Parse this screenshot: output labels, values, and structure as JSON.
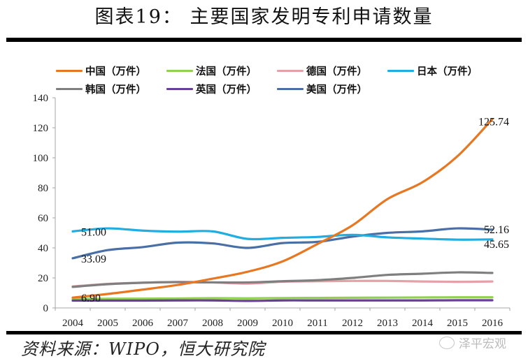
{
  "header": {
    "title": "图表19：  主要国家发明专利申请数量"
  },
  "footer": {
    "source": "资料来源：WIPO，恒大研究院",
    "watermark": "泽平宏观"
  },
  "chart_data": {
    "type": "line",
    "title": "图表19：主要国家发明专利申请数量",
    "xlabel": "",
    "ylabel": "",
    "x": [
      "2004",
      "2005",
      "2006",
      "2007",
      "2008",
      "2009",
      "2010",
      "2011",
      "2012",
      "2013",
      "2014",
      "2015",
      "2016"
    ],
    "ylim": [
      0,
      140
    ],
    "yticks": [
      0,
      20,
      40,
      60,
      80,
      100,
      120,
      140
    ],
    "grid": false,
    "legend_position": "top",
    "series": [
      {
        "name": "中国（万件）",
        "color": "#E87722",
        "values": [
          6.9,
          9.3,
          12.2,
          15.3,
          19.5,
          24.1,
          31.0,
          42.6,
          55.0,
          72.5,
          83.7,
          101.0,
          125.74
        ]
      },
      {
        "name": "法国（万件）",
        "color": "#92D050",
        "values": [
          6.0,
          6.1,
          6.2,
          6.3,
          6.5,
          6.4,
          6.6,
          6.7,
          6.8,
          6.9,
          7.0,
          7.1,
          7.1
        ]
      },
      {
        "name": "德国（万件）",
        "color": "#E6A0A8",
        "values": [
          14.3,
          16.0,
          16.8,
          17.3,
          17.0,
          16.2,
          17.5,
          17.8,
          18.0,
          18.0,
          17.6,
          17.4,
          17.6
        ]
      },
      {
        "name": "日本（万件）",
        "color": "#1FAEDF",
        "values": [
          51.0,
          53.0,
          51.5,
          50.8,
          51.0,
          46.0,
          46.7,
          47.3,
          48.7,
          47.0,
          46.2,
          45.5,
          45.65
        ]
      },
      {
        "name": "韩国（万件）",
        "color": "#7F7F7F",
        "values": [
          14.0,
          15.8,
          16.8,
          17.2,
          17.0,
          17.0,
          17.8,
          18.5,
          20.0,
          22.0,
          22.8,
          23.7,
          23.3
        ]
      },
      {
        "name": "英国（万件）",
        "color": "#6A3D9A",
        "values": [
          4.9,
          4.9,
          4.9,
          5.0,
          5.0,
          4.7,
          5.0,
          5.0,
          5.0,
          5.0,
          5.0,
          5.1,
          5.1
        ]
      },
      {
        "name": "美国（万件）",
        "color": "#4A6FA5",
        "values": [
          33.09,
          38.5,
          40.5,
          43.5,
          43.0,
          40.0,
          43.2,
          44.0,
          47.5,
          50.0,
          51.0,
          53.0,
          52.16
        ]
      }
    ],
    "annotations": [
      {
        "series": "中国（万件）",
        "x": "2004",
        "label": "6.90"
      },
      {
        "series": "中国（万件）",
        "x": "2016",
        "label": "125.74"
      },
      {
        "series": "日本（万件）",
        "x": "2004",
        "label": "51.00"
      },
      {
        "series": "日本（万件）",
        "x": "2016",
        "label": "45.65"
      },
      {
        "series": "美国（万件）",
        "x": "2004",
        "label": "33.09"
      },
      {
        "series": "美国（万件）",
        "x": "2016",
        "label": "52.16"
      }
    ]
  }
}
